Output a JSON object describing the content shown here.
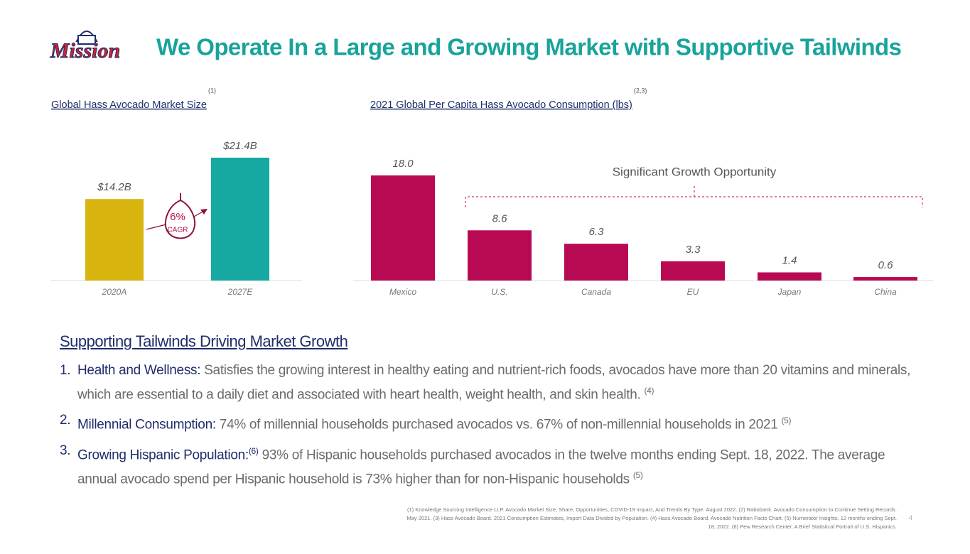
{
  "title": "We Operate In a Large and Growing Market with Supportive Tailwinds",
  "logo": "Mission",
  "chart_data": [
    {
      "type": "bar",
      "title": "Global Hass Avocado Market Size",
      "title_note": "(1)",
      "categories": [
        "2020A",
        "2027E"
      ],
      "values": [
        14.2,
        21.4
      ],
      "value_labels": [
        "$14.2B",
        "$21.4B"
      ],
      "colors": [
        "#d8b40f",
        "#15a9a1"
      ],
      "annotation": "6%",
      "annotation_sub": "CAGR"
    },
    {
      "type": "bar",
      "title": "2021 Global Per Capita Hass Avocado Consumption (lbs)",
      "title_note": "(2,3)",
      "categories": [
        "Mexico",
        "U.S.",
        "Canada",
        "EU",
        "Japan",
        "China"
      ],
      "values": [
        18.0,
        8.6,
        6.3,
        3.3,
        1.4,
        0.6
      ],
      "value_labels": [
        "18.0",
        "8.6",
        "6.3",
        "3.3",
        "1.4",
        "0.6"
      ],
      "color": "#b80a52",
      "annotation": "Significant Growth Opportunity"
    }
  ],
  "tailwinds": {
    "heading": "Supporting Tailwinds Driving Market Growth",
    "items": [
      {
        "number": "1.",
        "label": "Health and Wellness:",
        "text": "Satisfies the growing interest in healthy eating and nutrient-rich foods, avocados have more than 20 vitamins and minerals, which are essential to a daily diet and associated with heart health, weight health, and skin health.",
        "note": "(4)"
      },
      {
        "number": "2.",
        "label": "Millennial Consumption:",
        "text": "74% of millennial households purchased avocados vs. 67% of non-millennial households in 2021",
        "note": "(5)"
      },
      {
        "number": "3.",
        "label": "Growing Hispanic Population:",
        "label_note": "(6)",
        "text": "93% of Hispanic households purchased avocados in the twelve months ending Sept. 18, 2022. The average annual avocado spend per Hispanic household is 73% higher than for non-Hispanic households",
        "note": "(5)"
      }
    ]
  },
  "footnote": "(1) Knowledge Sourcing Intelligence LLP. Avocado Market Size, Share, Opportunities, COVID-19 Impact, And Trends By Type. August 2022. (2) Rabobank. Avocado Consumption to Continue Setting Records. May 2021. (3) Hass Avocado Board. 2021 Consumption Estimates, Import Data Divided by Population. (4) Hass Avocado Board. Avocado Nutrition Facts Chart. (5) Numerator Insights. 12 months ending Sept. 18, 2022. (6) Pew Research Center. A Brief Statistical Portrait of U.S. Hispanics.",
  "page_number": "4"
}
